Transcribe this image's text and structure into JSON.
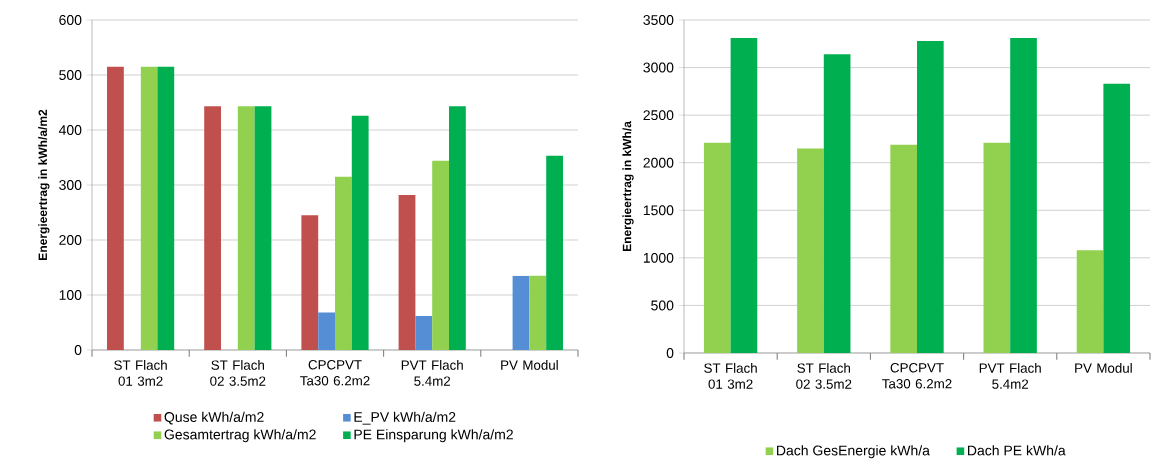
{
  "chart_data": [
    {
      "type": "bar",
      "ylabel": "Energieertrag in kWh/a/m2",
      "categories": [
        "ST Flach 01 3m2",
        "ST Flach 02 3.5m2",
        "CPCPVT Ta30  6.2m2",
        "PVT Flach 5.4m2",
        "PV Modul"
      ],
      "series": [
        {
          "name": "Quse kWh/a/m2",
          "color": "#c0504d",
          "values": [
            515,
            443,
            245,
            282,
            null
          ]
        },
        {
          "name": "E_PV kWh/a/m2",
          "color": "#558ed5",
          "values": [
            null,
            null,
            68,
            62,
            135
          ]
        },
        {
          "name": "Gesamtertrag kWh/a/m2",
          "color": "#92d050",
          "values": [
            515,
            443,
            315,
            344,
            135
          ]
        },
        {
          "name": "PE Einsparung kWh/a/m2",
          "color": "#00b050",
          "values": [
            515,
            443,
            426,
            443,
            353
          ]
        }
      ],
      "ylim": [
        0,
        600
      ],
      "yticks": [
        0,
        100,
        200,
        300,
        400,
        500,
        600
      ],
      "grid": "y",
      "legend": "bottom"
    },
    {
      "type": "bar",
      "ylabel": "Energieertrag in kWh/a",
      "categories": [
        "ST Flach 01 3m2",
        "ST Flach 02 3.5m2",
        "CPCPVT Ta30  6.2m2",
        "PVT Flach 5.4m2",
        "PV Modul"
      ],
      "series": [
        {
          "name": "Dach GesEnergie kWh/a",
          "color": "#92d050",
          "values": [
            2210,
            2150,
            2190,
            2210,
            1080
          ]
        },
        {
          "name": "Dach PE kWh/a",
          "color": "#00b050",
          "values": [
            3310,
            3140,
            3280,
            3310,
            2830
          ]
        }
      ],
      "ylim": [
        0,
        3500
      ],
      "yticks": [
        0,
        500,
        1000,
        1500,
        2000,
        2500,
        3000,
        3500
      ],
      "grid": "y",
      "legend": "bottom"
    }
  ]
}
